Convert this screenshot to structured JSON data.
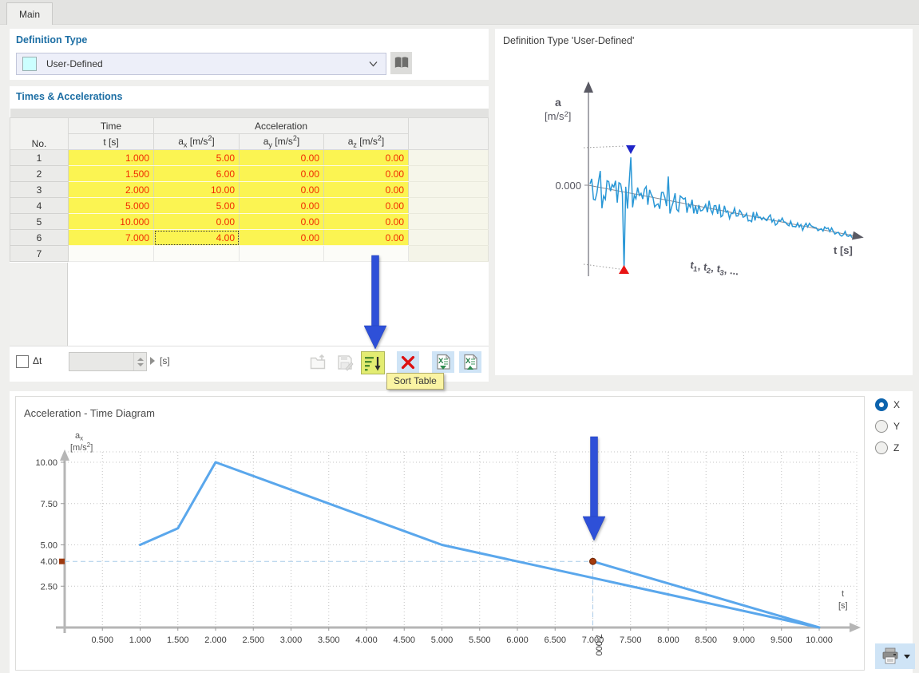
{
  "window": {
    "tab_label": "Main"
  },
  "definition_type": {
    "title": "Definition Type",
    "selected_value": "User-Defined",
    "swatch_color": "#ccffff"
  },
  "times_accelerations": {
    "title": "Times & Accelerations",
    "header": {
      "no": "No.",
      "time_group": "Time",
      "time_unit": "t [s]",
      "accel_group": "Acceleration",
      "ax": "a_{x} [m/s^{2}]",
      "ay": "a_{y} [m/s^{2}]",
      "az": "a_{z} [m/s^{2}]"
    },
    "rows": [
      {
        "no": "1",
        "t": "1.000",
        "ax": "5.00",
        "ay": "0.00",
        "az": "0.00"
      },
      {
        "no": "2",
        "t": "1.500",
        "ax": "6.00",
        "ay": "0.00",
        "az": "0.00"
      },
      {
        "no": "3",
        "t": "2.000",
        "ax": "10.00",
        "ay": "0.00",
        "az": "0.00"
      },
      {
        "no": "4",
        "t": "5.000",
        "ax": "5.00",
        "ay": "0.00",
        "az": "0.00"
      },
      {
        "no": "5",
        "t": "10.000",
        "ax": "0.00",
        "ay": "0.00",
        "az": "0.00"
      },
      {
        "no": "6",
        "t": "7.000",
        "ax": "4.00",
        "ay": "0.00",
        "az": "0.00"
      },
      {
        "no": "7",
        "t": "",
        "ax": "",
        "ay": "",
        "az": ""
      }
    ],
    "selected_cell": {
      "row_index": 5,
      "col": "ax"
    },
    "delta_t": {
      "label": "Δt",
      "checked": false,
      "value": "",
      "unit": "[s]"
    },
    "toolbar": {
      "buttons": [
        {
          "name": "open-table",
          "disabled": true
        },
        {
          "name": "save-table",
          "disabled": true
        },
        {
          "name": "sort-table",
          "highlighted": true
        },
        {
          "name": "delete-table",
          "disabled": false
        },
        {
          "name": "excel-import",
          "disabled": false
        },
        {
          "name": "excel-export",
          "disabled": false
        }
      ],
      "tooltip_text": "Sort Table"
    }
  },
  "preview_panel": {
    "title": "Definition Type 'User-Defined'",
    "axis_label": "a",
    "axis_unit": "[m/s^{2}]",
    "zero_label": "0.000",
    "time_axis_label": "t [s]",
    "sequence_label": "t_{1}, t_{2}, t_{3}, ...",
    "signal_color": "#2997d6",
    "peak_marker_top_color": "#1f25c8",
    "peak_marker_bottom_color": "#e81414"
  },
  "chart_data": {
    "type": "line",
    "title": "Acceleration - Time Diagram",
    "x_axis_label": "t [s]",
    "y_axis_label": "a_{x} [m/s^{2}]",
    "x": [
      1.0,
      1.5,
      2.0,
      5.0,
      10.0,
      7.0
    ],
    "y": [
      5.0,
      6.0,
      10.0,
      5.0,
      0.0,
      4.0
    ],
    "xlim": [
      0,
      10.5
    ],
    "ylim": [
      0,
      10.6
    ],
    "xticks": [
      0.5,
      1.0,
      1.5,
      2.0,
      2.5,
      3.0,
      3.5,
      4.0,
      4.5,
      5.0,
      5.5,
      6.0,
      6.5,
      7.0,
      7.5,
      8.0,
      8.5,
      9.0,
      9.5,
      10.0
    ],
    "yticks": [
      2.5,
      5.0,
      7.5,
      10.0
    ],
    "highlight": {
      "x": 7.0,
      "y": 4.0,
      "x_label": "7.000",
      "y_label": "4.00"
    },
    "line_color": "#5aa7ec",
    "highlight_color": "#9e3a10",
    "crosshair_color": "#a9cbe9",
    "grid": "dotted",
    "legend": null
  },
  "axis_selector": {
    "options": [
      "X",
      "Y",
      "Z"
    ],
    "selected": "X"
  },
  "annotations": {
    "arrow_color": "#2e50d8"
  },
  "icons": {
    "book": "library-book-icon",
    "combo_chevron": "chevron-down-icon",
    "open": "open-folder-icon",
    "save": "save-disk-icon",
    "sort": "sort-descending-icon",
    "delete": "red-cross-icon",
    "excel_import": "excel-import-icon",
    "excel_export": "excel-export-icon",
    "print": "printer-icon"
  }
}
